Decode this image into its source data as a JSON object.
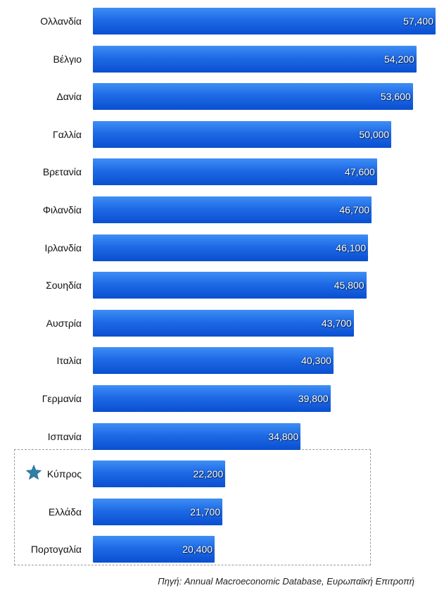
{
  "chart_data": {
    "type": "bar",
    "orientation": "horizontal",
    "categories": [
      "Ολλανδία",
      "Βέλγιο",
      "Δανία",
      "Γαλλία",
      "Βρετανία",
      "Φιλανδία",
      "Ιρλανδία",
      "Σουηδία",
      "Αυστρία",
      "Ιταλία",
      "Γερμανία",
      "Ισπανία",
      "Κύπρος",
      "Ελλάδα",
      "Πορτογαλία"
    ],
    "values": [
      57400,
      54200,
      53600,
      50000,
      47600,
      46700,
      46100,
      45800,
      43700,
      40300,
      39800,
      34800,
      22200,
      21700,
      20400
    ],
    "value_labels": [
      "57,400",
      "54,200",
      "53,600",
      "50,000",
      "47,600",
      "46,700",
      "46,100",
      "45,800",
      "43,700",
      "40,300",
      "39,800",
      "34,800",
      "22,200",
      "21,700",
      "20,400"
    ],
    "highlighted": [
      "Κύπρος",
      "Ελλάδα",
      "Πορτογαλία"
    ],
    "starred": "Κύπρος",
    "bar_color": "#1e6ae6",
    "grid": false
  },
  "source": "Πηγή: Annual Macroeconomic Database, Ευρωπαϊκή Επιτροπή",
  "icons": {
    "star": "star-icon",
    "star_color": "#2f7fa6"
  }
}
